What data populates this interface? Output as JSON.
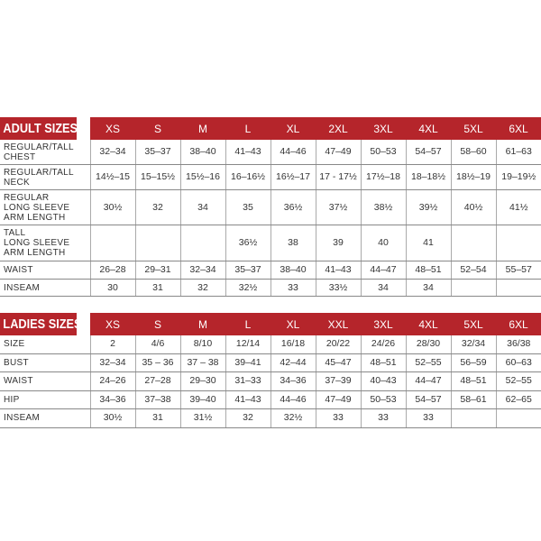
{
  "adult": {
    "title": "ADULT SIZES",
    "columns": [
      "XS",
      "S",
      "M",
      "L",
      "XL",
      "2XL",
      "3XL",
      "4XL",
      "5XL",
      "6XL"
    ],
    "rows": [
      {
        "label": "REGULAR/TALL\nCHEST",
        "values": [
          "32–34",
          "35–37",
          "38–40",
          "41–43",
          "44–46",
          "47–49",
          "50–53",
          "54–57",
          "58–60",
          "61–63"
        ]
      },
      {
        "label": "REGULAR/TALL\nNECK",
        "values": [
          "14½–15",
          "15–15½",
          "15½–16",
          "16–16½",
          "16½–17",
          "17 - 17½",
          "17½–18",
          "18–18½",
          "18½–19",
          "19–19½"
        ]
      },
      {
        "label": "REGULAR\nLONG SLEEVE\nARM LENGTH",
        "values": [
          "30½",
          "32",
          "34",
          "35",
          "36½",
          "37½",
          "38½",
          "39½",
          "40½",
          "41½"
        ]
      },
      {
        "label": "TALL\nLONG SLEEVE\nARM LENGTH",
        "values": [
          "",
          "",
          "",
          "36½",
          "38",
          "39",
          "40",
          "41",
          "",
          ""
        ]
      },
      {
        "label": "WAIST",
        "values": [
          "26–28",
          "29–31",
          "32–34",
          "35–37",
          "38–40",
          "41–43",
          "44–47",
          "48–51",
          "52–54",
          "55–57"
        ]
      },
      {
        "label": "INSEAM",
        "values": [
          "30",
          "31",
          "32",
          "32½",
          "33",
          "33½",
          "34",
          "34",
          "",
          ""
        ]
      }
    ]
  },
  "ladies": {
    "title": "LADIES SIZES",
    "columns": [
      "XS",
      "S",
      "M",
      "L",
      "XL",
      "XXL",
      "3XL",
      "4XL",
      "5XL",
      "6XL"
    ],
    "rows": [
      {
        "label": "SIZE",
        "values": [
          "2",
          "4/6",
          "8/10",
          "12/14",
          "16/18",
          "20/22",
          "24/26",
          "28/30",
          "32/34",
          "36/38"
        ]
      },
      {
        "label": "BUST",
        "values": [
          "32–34",
          "35 – 36",
          "37 – 38",
          "39–41",
          "42–44",
          "45–47",
          "48–51",
          "52–55",
          "56–59",
          "60–63"
        ]
      },
      {
        "label": "WAIST",
        "values": [
          "24–26",
          "27–28",
          "29–30",
          "31–33",
          "34–36",
          "37–39",
          "40–43",
          "44–47",
          "48–51",
          "52–55"
        ]
      },
      {
        "label": "HIP",
        "values": [
          "34–36",
          "37–38",
          "39–40",
          "41–43",
          "44–46",
          "47–49",
          "50–53",
          "54–57",
          "58–61",
          "62–65"
        ]
      },
      {
        "label": "INSEAM",
        "values": [
          "30½",
          "31",
          "31½",
          "32",
          "32½",
          "33",
          "33",
          "33",
          "",
          ""
        ]
      }
    ]
  },
  "colors": {
    "header_bg": "#b5252b",
    "header_text": "#ffffff"
  }
}
